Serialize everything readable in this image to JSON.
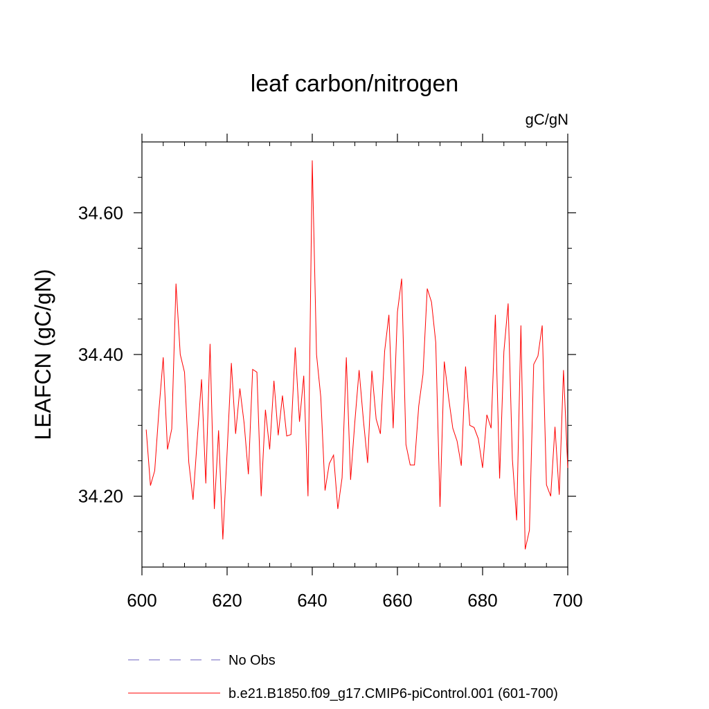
{
  "chart_data": {
    "type": "line",
    "title": "leaf carbon/nitrogen",
    "units": "gC/gN",
    "ylabel": "LEAFCN  (gC/gN)",
    "xlabel": "",
    "xlim": [
      600,
      700
    ],
    "ylim": [
      34.1,
      34.7
    ],
    "x_ticks": [
      600,
      620,
      640,
      660,
      680,
      700
    ],
    "y_ticks": [
      34.2,
      34.4,
      34.6
    ],
    "y_tick_labels": [
      "34.20",
      "34.40",
      "34.60"
    ],
    "grid": false,
    "legend_position": "bottom",
    "legend": [
      {
        "label": "No Obs",
        "color": "#6b5fbf",
        "style": "dashed"
      },
      {
        "label": "b.e21.B1850.f09_g17.CMIP6-piControl.001 (601-700)",
        "color": "#ff0000",
        "style": "solid"
      }
    ],
    "series": [
      {
        "name": "b.e21.B1850.f09_g17.CMIP6-piControl.001 (601-700)",
        "color": "#ff0000",
        "x": [
          601,
          602,
          603,
          604,
          605,
          606,
          607,
          608,
          609,
          610,
          611,
          612,
          613,
          614,
          615,
          616,
          617,
          618,
          619,
          620,
          621,
          622,
          623,
          624,
          625,
          626,
          627,
          628,
          629,
          630,
          631,
          632,
          633,
          634,
          635,
          636,
          637,
          638,
          639,
          640,
          641,
          642,
          643,
          644,
          645,
          646,
          647,
          648,
          649,
          650,
          651,
          652,
          653,
          654,
          655,
          656,
          657,
          658,
          659,
          660,
          661,
          662,
          663,
          664,
          665,
          666,
          667,
          668,
          669,
          670,
          671,
          672,
          673,
          674,
          675,
          676,
          677,
          678,
          679,
          680,
          681,
          682,
          683,
          684,
          685,
          686,
          687,
          688,
          689,
          690,
          691,
          692,
          693,
          694,
          695,
          696,
          697,
          698,
          699,
          700
        ],
        "values": [
          34.294,
          34.215,
          34.236,
          34.322,
          34.396,
          34.266,
          34.295,
          34.5,
          34.4,
          34.375,
          34.248,
          34.195,
          34.281,
          34.365,
          34.218,
          34.415,
          34.182,
          34.293,
          34.139,
          34.262,
          34.388,
          34.288,
          34.352,
          34.303,
          34.231,
          34.379,
          34.375,
          34.2,
          34.322,
          34.266,
          34.363,
          34.286,
          34.342,
          34.285,
          34.287,
          34.41,
          34.305,
          34.37,
          34.2,
          34.674,
          34.4,
          34.34,
          34.208,
          34.246,
          34.258,
          34.182,
          34.226,
          34.396,
          34.223,
          34.305,
          34.378,
          34.308,
          34.247,
          34.377,
          34.309,
          34.288,
          34.405,
          34.456,
          34.296,
          34.46,
          34.507,
          34.273,
          34.244,
          34.244,
          34.327,
          34.372,
          34.493,
          34.474,
          34.417,
          34.185,
          34.39,
          34.34,
          34.296,
          34.278,
          34.243,
          34.383,
          34.3,
          34.297,
          34.281,
          34.24,
          34.315,
          34.296,
          34.456,
          34.225,
          34.404,
          34.472,
          34.252,
          34.166,
          34.441,
          34.125,
          34.152,
          34.386,
          34.398,
          34.441,
          34.216,
          34.2,
          34.298,
          34.202,
          34.378,
          34.24
        ]
      }
    ]
  }
}
